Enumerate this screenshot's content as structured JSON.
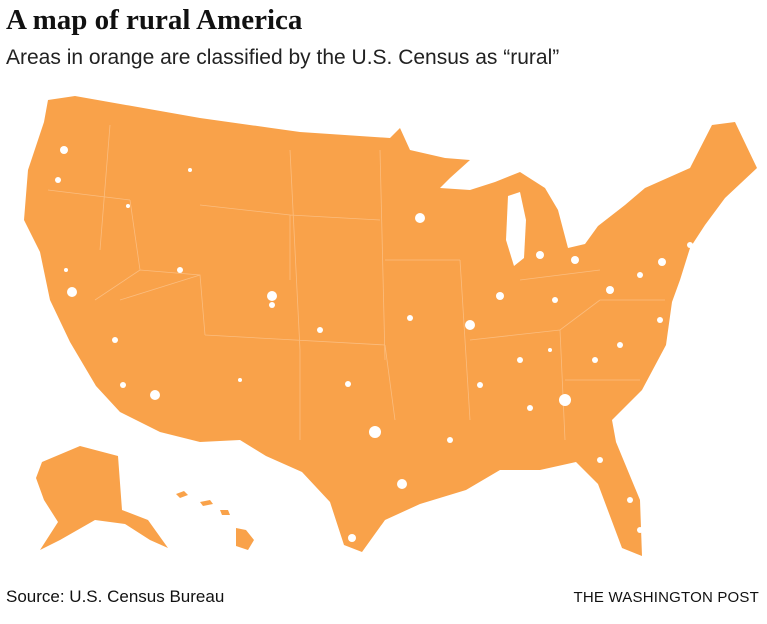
{
  "header": {
    "title": "A map of rural America",
    "subtitle": "Areas in orange are classified by the U.S. Census as “rural”"
  },
  "footer": {
    "source": "Source: U.S. Census Bureau",
    "credit": "THE WASHINGTON POST"
  }
}
